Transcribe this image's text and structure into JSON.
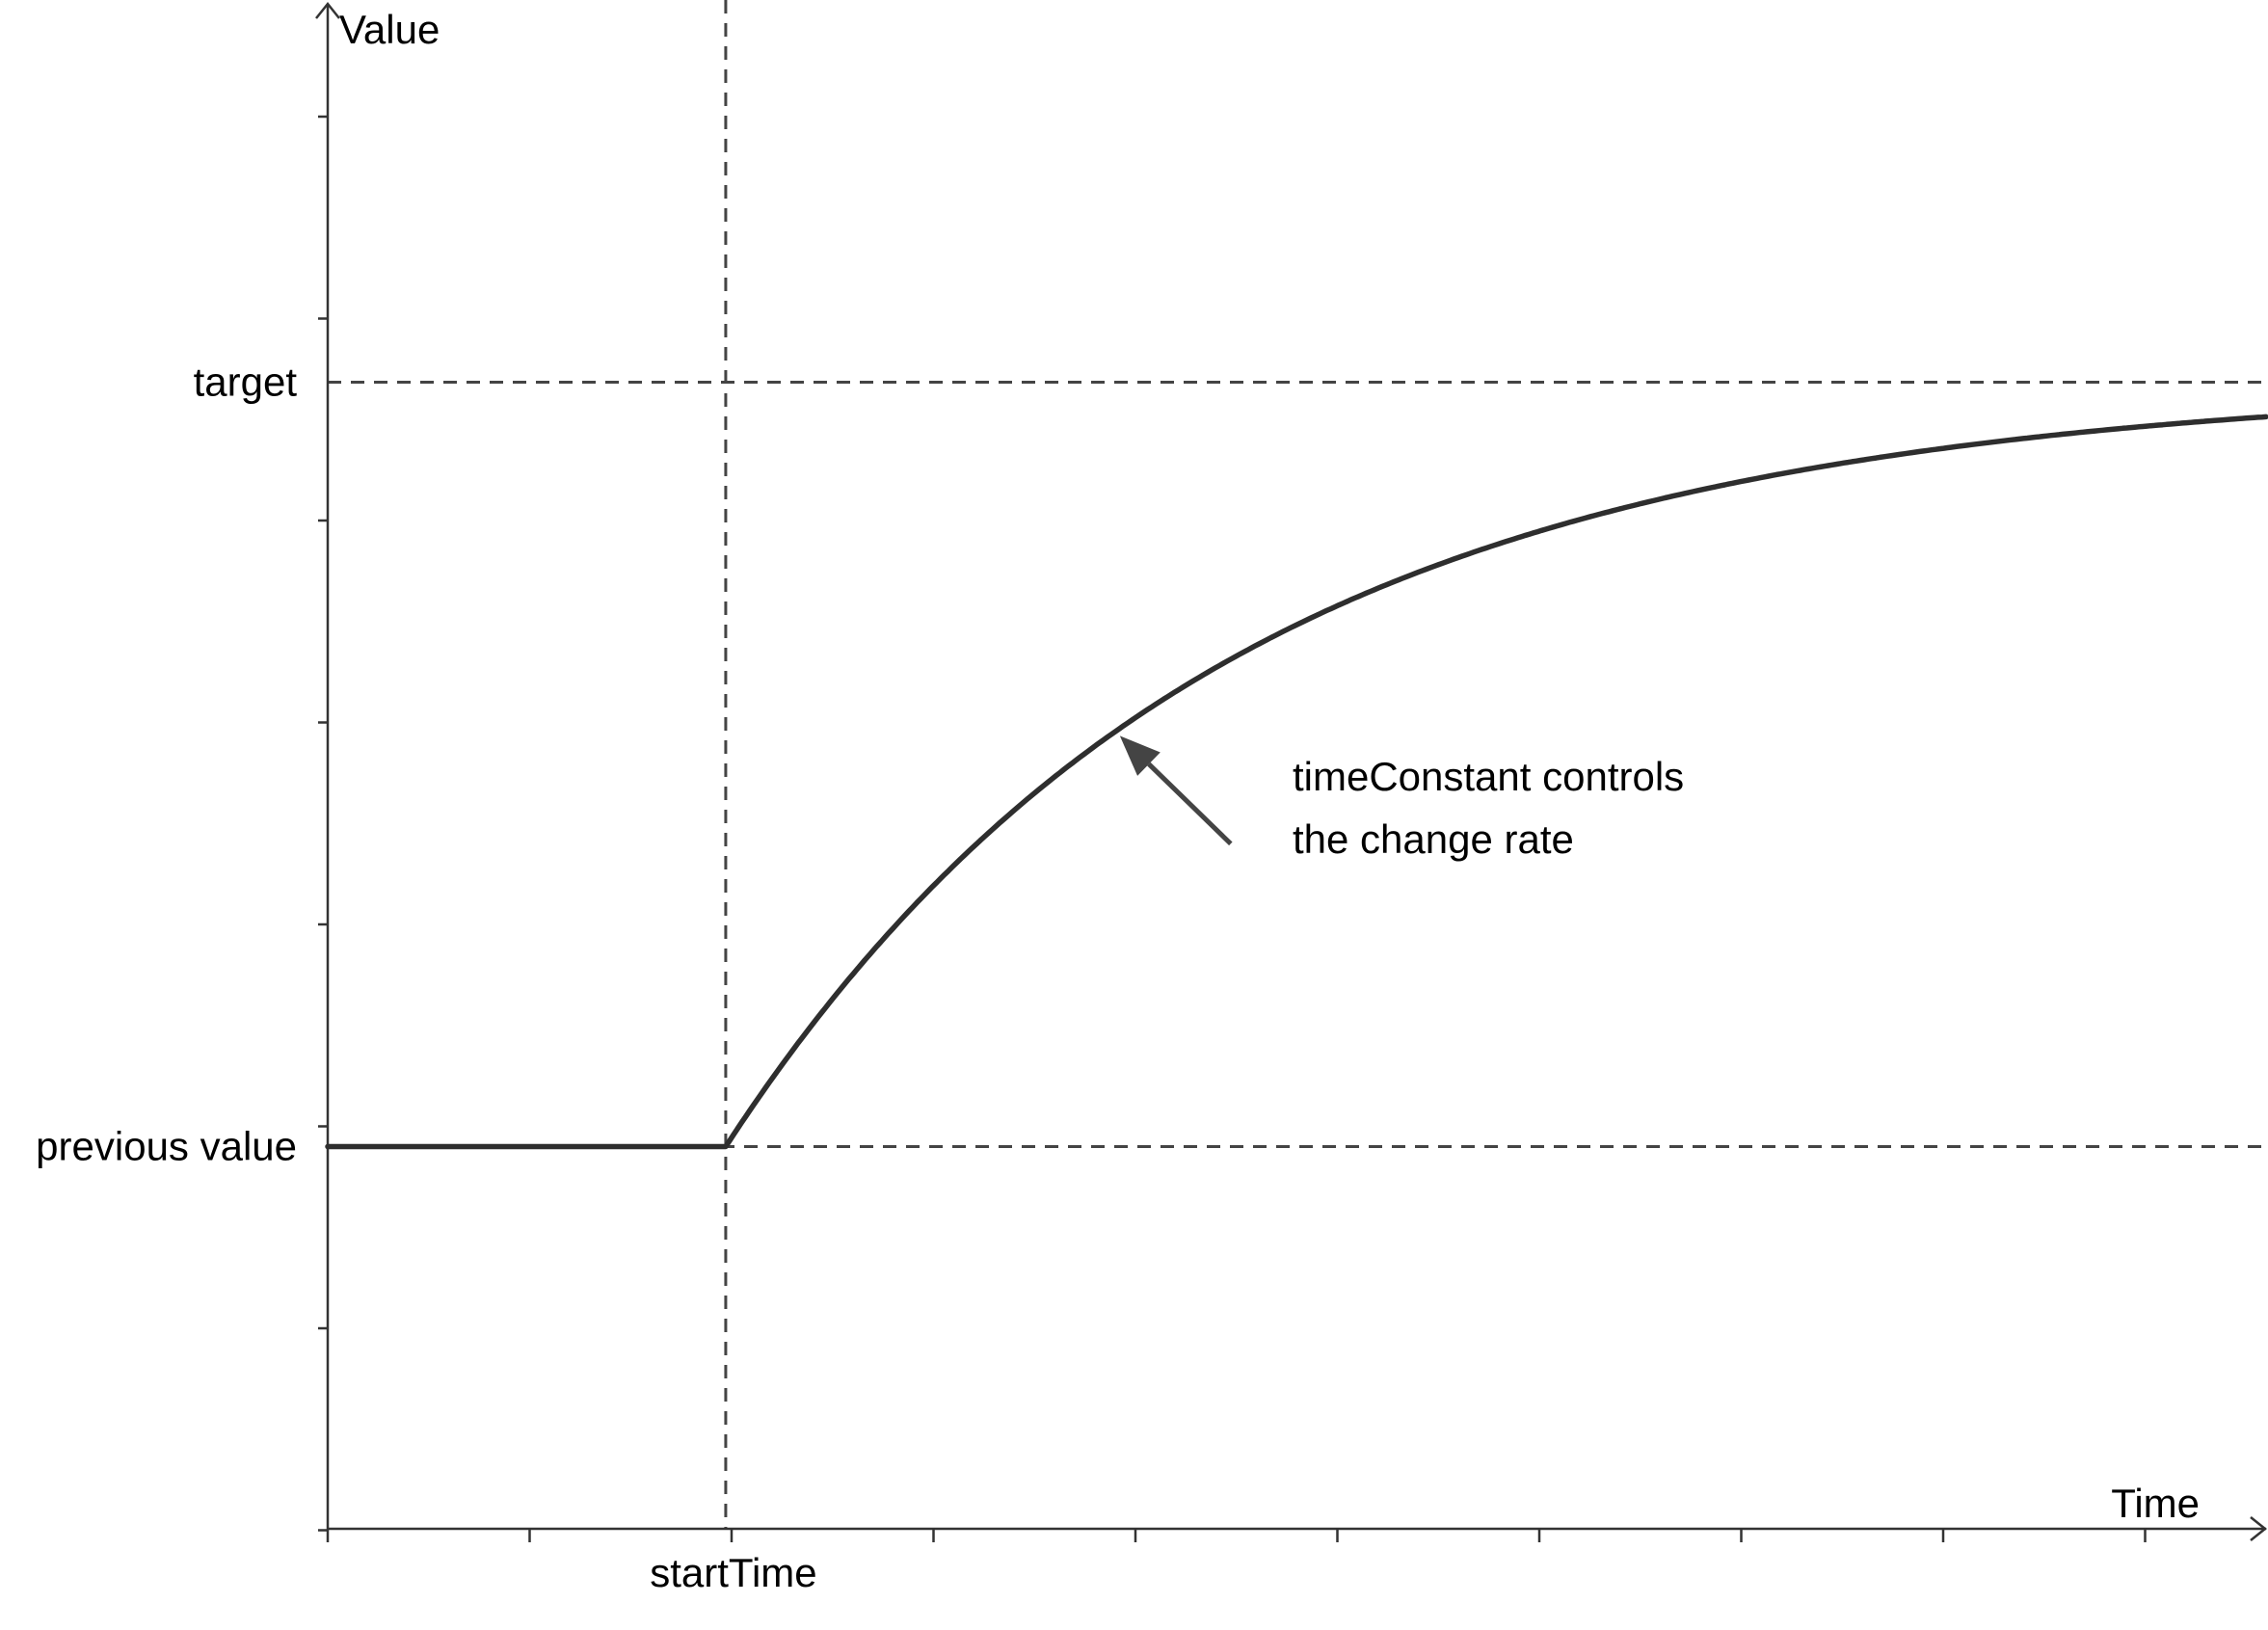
{
  "chart_data": {
    "type": "line",
    "x_axis": {
      "label": "Time",
      "tick_labels": [
        {
          "text": "startTime",
          "at": 2
        }
      ],
      "range": [
        0,
        9.75
      ],
      "minor_ticks": 9
    },
    "y_axis": {
      "label": "Value",
      "tick_labels": [
        {
          "text": "target",
          "at": 1
        },
        {
          "text": "previous value",
          "at": 0
        }
      ],
      "range": [
        -0.5,
        1.5
      ]
    },
    "reference_lines": [
      {
        "orientation": "horizontal",
        "at": 1,
        "style": "dashed",
        "ref": "target"
      },
      {
        "orientation": "horizontal",
        "at": 0,
        "style": "dashed",
        "ref": "previous value"
      },
      {
        "orientation": "vertical",
        "at": 2,
        "style": "dashed",
        "ref": "startTime"
      }
    ],
    "series": [
      {
        "formula": "0 for t < startTime; 1 - exp(-(t - startTime) / timeConstant) for t >= startTime",
        "start_time": 2,
        "time_constant": 2.5,
        "x": [
          0,
          1,
          2,
          2.5,
          3,
          3.5,
          4,
          4.5,
          5,
          5.5,
          6,
          6.5,
          7,
          7.5,
          8,
          8.5,
          9,
          9.5,
          9.75
        ],
        "y": [
          0,
          0,
          0,
          0.181,
          0.33,
          0.451,
          0.551,
          0.632,
          0.699,
          0.753,
          0.798,
          0.835,
          0.865,
          0.889,
          0.909,
          0.926,
          0.939,
          0.95,
          0.955
        ],
        "color": "#2e2e2e"
      }
    ],
    "annotation": {
      "lines": [
        "timeConstant controls",
        "the change rate"
      ],
      "arrow_to": {
        "x": 4.0,
        "y": 0.55
      }
    },
    "grid": false,
    "legend": "none"
  }
}
